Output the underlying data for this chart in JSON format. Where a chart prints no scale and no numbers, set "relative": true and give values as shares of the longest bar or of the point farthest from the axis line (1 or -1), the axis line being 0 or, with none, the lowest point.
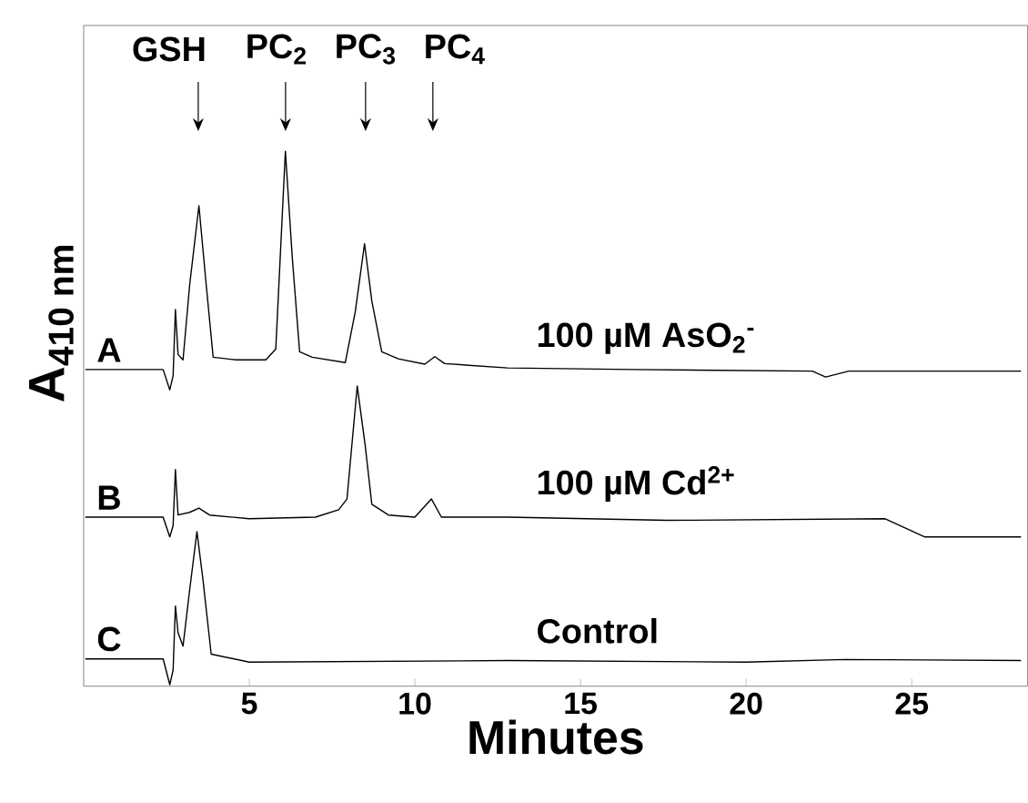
{
  "chart_data": {
    "type": "line",
    "relative": true,
    "xlabel": "Minutes",
    "ylabel": "A$_{410 nm}$",
    "xlim": [
      0,
      28.5
    ],
    "xticks": [
      5,
      10,
      15,
      20,
      25
    ],
    "grid": false,
    "marker": "none",
    "line_style": "solid",
    "series": [
      {
        "name": "100 µM AsO$_{2}$$^{-}$",
        "color": "#000000",
        "x": [
          0.05,
          2.4,
          2.6,
          2.7,
          2.77,
          2.85,
          3.0,
          3.2,
          3.48,
          3.7,
          3.91,
          4.6,
          5.5,
          5.8,
          6.09,
          6.3,
          6.52,
          6.9,
          7.9,
          8.2,
          8.48,
          8.7,
          9.0,
          9.5,
          10.3,
          10.6,
          10.9,
          12.8,
          16.6,
          22.0,
          22.4,
          23.1,
          28.3
        ],
        "values": [
          0.592,
          0.592,
          0.554,
          0.58,
          0.704,
          0.62,
          0.61,
          0.75,
          0.898,
          0.75,
          0.615,
          0.61,
          0.61,
          0.63,
          1.0,
          0.8,
          0.625,
          0.615,
          0.605,
          0.7,
          0.827,
          0.72,
          0.625,
          0.612,
          0.602,
          0.616,
          0.603,
          0.595,
          0.592,
          0.589,
          0.578,
          0.589,
          0.589
        ]
      },
      {
        "name": "100 µM Cd$^{2+}$",
        "color": "#000000",
        "x": [
          0.05,
          2.4,
          2.6,
          2.7,
          2.77,
          2.85,
          3.2,
          3.48,
          3.8,
          5.0,
          7.0,
          7.7,
          7.95,
          8.26,
          8.5,
          8.7,
          9.2,
          10.0,
          10.5,
          10.8,
          12.8,
          17.6,
          24.2,
          25.4,
          28.3
        ],
        "values": [
          0.316,
          0.316,
          0.279,
          0.3,
          0.405,
          0.32,
          0.325,
          0.333,
          0.32,
          0.313,
          0.316,
          0.33,
          0.35,
          0.561,
          0.45,
          0.34,
          0.32,
          0.316,
          0.35,
          0.316,
          0.316,
          0.31,
          0.313,
          0.279,
          0.279
        ]
      },
      {
        "name": "Control",
        "color": "#000000",
        "x": [
          0.05,
          2.4,
          2.6,
          2.7,
          2.77,
          2.85,
          3.0,
          3.2,
          3.42,
          3.6,
          3.85,
          5.0,
          12.8,
          20.0,
          23.0,
          28.3
        ],
        "values": [
          0.051,
          0.051,
          0.003,
          0.03,
          0.15,
          0.1,
          0.075,
          0.18,
          0.289,
          0.2,
          0.06,
          0.045,
          0.048,
          0.045,
          0.05,
          0.048
        ]
      }
    ],
    "annotations": [
      "GSH",
      "PC$_{2}$",
      "PC$_{3}$",
      "PC$_{4}$",
      "A",
      "B",
      "C"
    ]
  }
}
